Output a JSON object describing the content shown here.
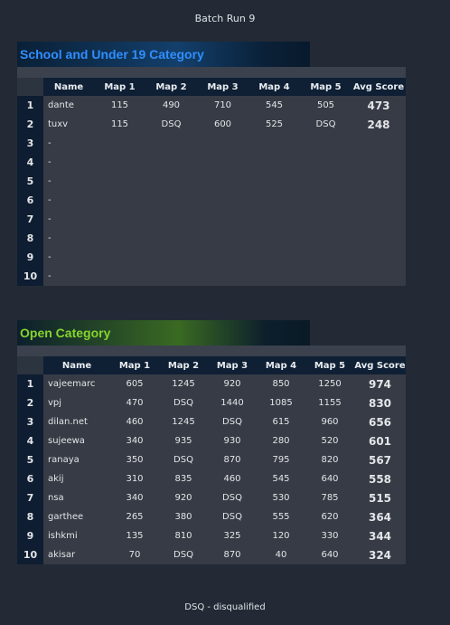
{
  "page": {
    "title": "Batch Run 9",
    "footnote": "DSQ - disqualified"
  },
  "columns": [
    "Name",
    "Map 1",
    "Map 2",
    "Map 3",
    "Map 4",
    "Map 5",
    "Avg Score"
  ],
  "colors": {
    "school_accent": "#2f8fff",
    "open_accent": "#86d42e",
    "row_bg": "#363b45",
    "rank_bg": "#0e1d31"
  },
  "school": {
    "title": "School and Under 19 Category",
    "rows": [
      {
        "rank": "1",
        "name": "dante",
        "m1": "115",
        "m2": "490",
        "m3": "710",
        "m4": "545",
        "m5": "505",
        "avg": "473"
      },
      {
        "rank": "2",
        "name": "tuxv",
        "m1": "115",
        "m2": "DSQ",
        "m3": "600",
        "m4": "525",
        "m5": "DSQ",
        "avg": "248"
      },
      {
        "rank": "3",
        "name": "-",
        "m1": "",
        "m2": "",
        "m3": "",
        "m4": "",
        "m5": "",
        "avg": ""
      },
      {
        "rank": "4",
        "name": "-",
        "m1": "",
        "m2": "",
        "m3": "",
        "m4": "",
        "m5": "",
        "avg": ""
      },
      {
        "rank": "5",
        "name": "-",
        "m1": "",
        "m2": "",
        "m3": "",
        "m4": "",
        "m5": "",
        "avg": ""
      },
      {
        "rank": "6",
        "name": "-",
        "m1": "",
        "m2": "",
        "m3": "",
        "m4": "",
        "m5": "",
        "avg": ""
      },
      {
        "rank": "7",
        "name": "-",
        "m1": "",
        "m2": "",
        "m3": "",
        "m4": "",
        "m5": "",
        "avg": ""
      },
      {
        "rank": "8",
        "name": "-",
        "m1": "",
        "m2": "",
        "m3": "",
        "m4": "",
        "m5": "",
        "avg": ""
      },
      {
        "rank": "9",
        "name": "-",
        "m1": "",
        "m2": "",
        "m3": "",
        "m4": "",
        "m5": "",
        "avg": ""
      },
      {
        "rank": "10",
        "name": "-",
        "m1": "",
        "m2": "",
        "m3": "",
        "m4": "",
        "m5": "",
        "avg": ""
      }
    ]
  },
  "open": {
    "title": "Open Category",
    "rows": [
      {
        "rank": "1",
        "name": "vajeemarc",
        "m1": "605",
        "m2": "1245",
        "m3": "920",
        "m4": "850",
        "m5": "1250",
        "avg": "974"
      },
      {
        "rank": "2",
        "name": "vpj",
        "m1": "470",
        "m2": "DSQ",
        "m3": "1440",
        "m4": "1085",
        "m5": "1155",
        "avg": "830"
      },
      {
        "rank": "3",
        "name": "dilan.net",
        "m1": "460",
        "m2": "1245",
        "m3": "DSQ",
        "m4": "615",
        "m5": "960",
        "avg": "656"
      },
      {
        "rank": "4",
        "name": "sujeewa",
        "m1": "340",
        "m2": "935",
        "m3": "930",
        "m4": "280",
        "m5": "520",
        "avg": "601"
      },
      {
        "rank": "5",
        "name": "ranaya",
        "m1": "350",
        "m2": "DSQ",
        "m3": "870",
        "m4": "795",
        "m5": "820",
        "avg": "567"
      },
      {
        "rank": "6",
        "name": "akij",
        "m1": "310",
        "m2": "835",
        "m3": "460",
        "m4": "545",
        "m5": "640",
        "avg": "558"
      },
      {
        "rank": "7",
        "name": "nsa",
        "m1": "340",
        "m2": "920",
        "m3": "DSQ",
        "m4": "530",
        "m5": "785",
        "avg": "515"
      },
      {
        "rank": "8",
        "name": "garthee",
        "m1": "265",
        "m2": "380",
        "m3": "DSQ",
        "m4": "555",
        "m5": "620",
        "avg": "364"
      },
      {
        "rank": "9",
        "name": "ishkmi",
        "m1": "135",
        "m2": "810",
        "m3": "325",
        "m4": "120",
        "m5": "330",
        "avg": "344"
      },
      {
        "rank": "10",
        "name": "akisar",
        "m1": "70",
        "m2": "DSQ",
        "m3": "870",
        "m4": "40",
        "m5": "640",
        "avg": "324"
      }
    ]
  }
}
